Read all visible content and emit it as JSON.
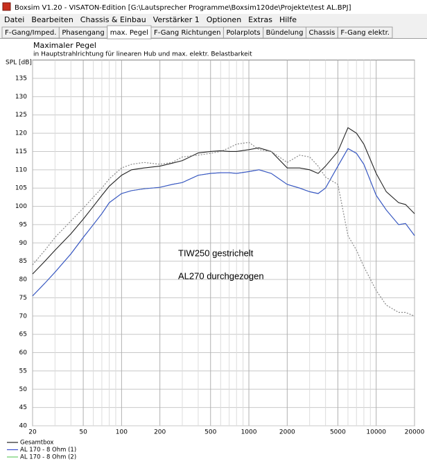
{
  "window": {
    "title": "Boxsim V1.20 - VISATON-Edition [G:\\Lautsprecher Programme\\Boxsim120de\\Projekte\\test AL.BPJ]"
  },
  "menu": [
    "Datei",
    "Bearbeiten",
    "Chassis & Einbau",
    "Verstärker 1",
    "Optionen",
    "Extras",
    "Hilfe"
  ],
  "tabs": [
    "F-Gang/Imped.",
    "Phasengang",
    "max. Pegel",
    "F-Gang Richtungen",
    "Polarplots",
    "Bündelung",
    "Chassis",
    "F-Gang elektr."
  ],
  "active_tab": 2,
  "chart_data": {
    "type": "line",
    "title": "Maximaler Pegel",
    "subtitle": "in Hauptstrahlrichtung für linearen Hub und max. elektr. Belastbarkeit",
    "y_label": "SPL [dB]",
    "x_scale": "log",
    "grid": true,
    "legend": "bottom-left",
    "x": [
      20,
      25,
      30,
      40,
      50,
      60,
      70,
      80,
      100,
      120,
      150,
      200,
      250,
      300,
      400,
      500,
      600,
      700,
      800,
      1000,
      1200,
      1500,
      2000,
      2500,
      3000,
      3500,
      4000,
      5000,
      6000,
      7000,
      8000,
      10000,
      12000,
      15000,
      17000,
      20000
    ],
    "xlim": [
      20,
      20000
    ],
    "xticks": [
      20,
      50,
      100,
      200,
      500,
      1000,
      2000,
      5000,
      10000,
      20000
    ],
    "xminorticks": [
      30,
      40,
      60,
      70,
      80,
      90,
      300,
      400,
      600,
      700,
      800,
      900,
      3000,
      4000,
      6000,
      7000,
      8000,
      9000
    ],
    "ylim": [
      40,
      140
    ],
    "yticks": [
      40,
      45,
      50,
      55,
      60,
      65,
      70,
      75,
      80,
      85,
      90,
      95,
      100,
      105,
      110,
      115,
      120,
      125,
      130,
      135
    ],
    "series": [
      {
        "name": "AL 170 - 8 Ohm (2)",
        "color": "#66cc66",
        "style": "solid",
        "values": [
          75.5,
          79,
          82,
          87,
          91.5,
          95,
          98,
          101,
          103.5,
          104.3,
          104.8,
          105.2,
          106,
          106.5,
          108.5,
          109,
          109.2,
          109.2,
          109,
          109.5,
          110,
          109,
          106,
          105,
          104,
          103.5,
          105,
          111,
          115.8,
          114.5,
          111.5,
          103,
          99,
          95,
          95.3,
          92
        ]
      },
      {
        "name": "AL 170 - 8 Ohm (1)",
        "color": "#3a4fd0",
        "style": "solid",
        "values": [
          75.5,
          79,
          82,
          87,
          91.5,
          95,
          98,
          101,
          103.5,
          104.3,
          104.8,
          105.2,
          106,
          106.5,
          108.5,
          109,
          109.2,
          109.2,
          109,
          109.5,
          110,
          109,
          106,
          105,
          104,
          103.5,
          105,
          111,
          115.8,
          114.5,
          111.5,
          103,
          99,
          95,
          95.3,
          92
        ]
      },
      {
        "name": "Gesamtbox",
        "color": "#222222",
        "style": "solid",
        "values": [
          81.5,
          85,
          88,
          92.5,
          96.5,
          100,
          103,
          105.5,
          108.5,
          110,
          110.5,
          111,
          111.8,
          112.5,
          114.6,
          115,
          115.2,
          115,
          115,
          115.5,
          116,
          115,
          110.5,
          110.5,
          110,
          109,
          111,
          115,
          121.5,
          120,
          117,
          109,
          104,
          101,
          100.5,
          98
        ]
      },
      {
        "color": "#888888",
        "style": "dotted",
        "values": [
          84,
          88,
          91.5,
          96,
          99.5,
          102.5,
          105,
          107.5,
          110.5,
          111.5,
          112,
          111.5,
          112,
          113.5,
          114,
          114.5,
          115,
          116,
          117,
          117.5,
          115.5,
          115,
          112,
          114,
          113.5,
          111,
          108,
          106,
          92,
          88,
          83.5,
          77,
          73,
          71,
          71,
          70
        ]
      }
    ],
    "annotations": [
      "TIW250 gestrichelt",
      "AL270 durchgezogen"
    ]
  }
}
